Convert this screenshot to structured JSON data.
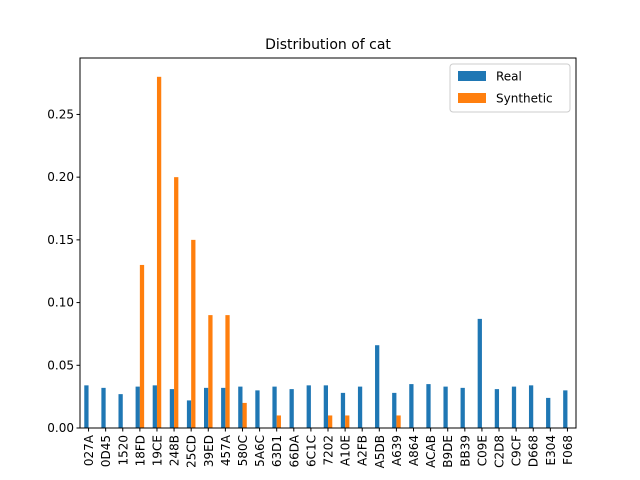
{
  "chart_data": {
    "type": "bar",
    "title": "Distribution of cat",
    "xlabel": "",
    "ylabel": "",
    "ylim": [
      0,
      0.295
    ],
    "yticks": [
      0.0,
      0.05,
      0.1,
      0.15,
      0.2,
      0.25
    ],
    "ytick_labels": [
      "0.00",
      "0.05",
      "0.10",
      "0.15",
      "0.20",
      "0.25"
    ],
    "legend_position": "top-right",
    "grid": false,
    "categories": [
      "027A",
      "0D45",
      "1520",
      "18FD",
      "19CE",
      "248B",
      "25CD",
      "39ED",
      "457A",
      "580C",
      "5A6C",
      "63D1",
      "66DA",
      "6C1C",
      "7202",
      "A10E",
      "A2FB",
      "A5DB",
      "A639",
      "A864",
      "ACAB",
      "B9DE",
      "BB39",
      "C09E",
      "C2D8",
      "C9CF",
      "D668",
      "E304",
      "F068"
    ],
    "series": [
      {
        "name": "Real",
        "color": "#1f77b4",
        "values": [
          0.034,
          0.032,
          0.027,
          0.033,
          0.034,
          0.031,
          0.022,
          0.032,
          0.032,
          0.033,
          0.03,
          0.033,
          0.031,
          0.034,
          0.034,
          0.028,
          0.033,
          0.066,
          0.028,
          0.035,
          0.035,
          0.033,
          0.032,
          0.087,
          0.031,
          0.033,
          0.034,
          0.024,
          0.03
        ]
      },
      {
        "name": "Synthetic",
        "color": "#ff7f0e",
        "values": [
          0,
          0,
          0,
          0.13,
          0.28,
          0.2,
          0.15,
          0.09,
          0.09,
          0.02,
          0,
          0.01,
          0,
          0,
          0.01,
          0.01,
          0,
          0,
          0.01,
          0,
          0,
          0,
          0,
          0,
          0,
          0,
          0,
          0,
          0
        ]
      }
    ]
  }
}
